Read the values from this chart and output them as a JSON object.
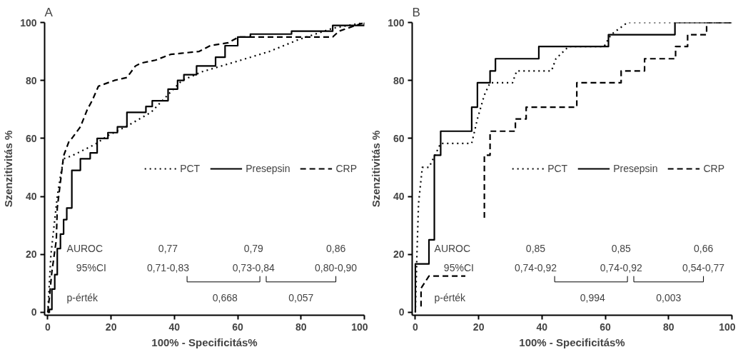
{
  "chart_data": [
    {
      "type": "line",
      "title": "A",
      "xlabel": "100% - Specificitás%",
      "ylabel": "Szenzitivitás %",
      "xlim": [
        -1,
        100
      ],
      "ylim": [
        -1,
        100
      ],
      "xticks": [
        0,
        20,
        40,
        60,
        80,
        100
      ],
      "yticks": [
        0,
        20,
        40,
        60,
        80,
        100
      ],
      "grid": false,
      "legend": "right",
      "series": [
        {
          "name": "PCT",
          "color": "#000000",
          "line_style": "dotted",
          "x": [
            0,
            0.5,
            1,
            2,
            3,
            4,
            5,
            7.6,
            15,
            19,
            24.6,
            32.6,
            38.8,
            42.4,
            48.7,
            61,
            70,
            79,
            90,
            100
          ],
          "values": [
            0,
            10,
            20,
            30,
            40,
            47,
            53,
            54,
            58,
            61,
            64,
            69,
            76,
            80,
            83,
            87,
            90,
            94,
            98,
            100
          ]
        },
        {
          "name": "Presepsin",
          "color": "#000000",
          "line_style": "solid",
          "x": [
            0,
            0.5,
            0.5,
            1.3,
            1.3,
            2.2,
            2.2,
            3,
            3,
            4,
            4,
            5,
            5,
            6,
            6,
            7.6,
            7.6,
            10.3,
            10.3,
            13.4,
            13.4,
            15.6,
            15.6,
            19,
            19,
            22,
            22,
            25,
            25,
            31,
            31,
            33,
            33,
            38,
            38,
            41,
            41,
            43,
            43,
            47,
            47,
            53,
            53,
            56,
            56,
            60,
            60,
            64,
            64,
            77,
            77,
            90,
            90,
            100,
            100
          ],
          "values": [
            0,
            0,
            1,
            1,
            8,
            8,
            13,
            13,
            22,
            22,
            27,
            27,
            32,
            32,
            36,
            36,
            49,
            49,
            53,
            53,
            55,
            55,
            60,
            60,
            62,
            62,
            64,
            64,
            69,
            69,
            71,
            71,
            73,
            73,
            77,
            77,
            80,
            80,
            82,
            82,
            85,
            85,
            88,
            88,
            92,
            92,
            95,
            95,
            96,
            96,
            97,
            97,
            99,
            99,
            100
          ]
        },
        {
          "name": "CRP",
          "color": "#000000",
          "line_style": "dashed",
          "x": [
            0,
            0.5,
            1.3,
            2.7,
            3,
            4,
            5,
            6.7,
            7.6,
            10.3,
            12.5,
            14,
            16,
            21,
            25,
            27.7,
            29.5,
            34,
            38.8,
            47.8,
            51.3,
            57,
            60.3,
            90,
            92,
            100
          ],
          "values": [
            0,
            5,
            14,
            25,
            36,
            45,
            54,
            59,
            60,
            64,
            70,
            73,
            78,
            80,
            81,
            85,
            86,
            87,
            89,
            90,
            92,
            93,
            95,
            95,
            97,
            100
          ]
        }
      ],
      "annotations": [
        "AUROC",
        "0,77",
        "0,79",
        "0,86",
        "95%CI",
        "0,71-0,83",
        "0,73-0,84",
        "0,80-0,90",
        "p-érték",
        "0,668",
        "0,057"
      ]
    },
    {
      "type": "line",
      "title": "B",
      "xlabel": "100% - Specificitás%",
      "ylabel": "Szenzitivitás %",
      "xlim": [
        -1,
        100
      ],
      "ylim": [
        -1,
        100
      ],
      "xticks": [
        0,
        20,
        40,
        60,
        80,
        100
      ],
      "yticks": [
        0,
        20,
        40,
        60,
        80,
        100
      ],
      "grid": false,
      "legend": "right",
      "series": [
        {
          "name": "PCT",
          "color": "#000000",
          "line_style": "dotted",
          "x": [
            0,
            0.5,
            1,
            2.2,
            4.3,
            8,
            17.8,
            19.6,
            21.8,
            23.6,
            30.7,
            32,
            43,
            44.4,
            48.4,
            59.6,
            61.8,
            67,
            100
          ],
          "values": [
            0,
            20,
            37.5,
            50,
            50,
            58.3,
            58.3,
            66.7,
            75,
            79.2,
            79.2,
            83.3,
            83.3,
            87.5,
            91.7,
            91.7,
            95.8,
            100,
            100
          ]
        },
        {
          "name": "Presepsin",
          "color": "#000000",
          "line_style": "solid",
          "x": [
            0,
            0,
            4.3,
            4.3,
            6,
            6,
            8,
            8,
            17.8,
            17.8,
            19.6,
            19.6,
            23.6,
            23.6,
            25.3,
            25.3,
            39,
            39,
            61,
            61,
            82,
            82,
            100
          ],
          "values": [
            0,
            16.7,
            16.7,
            25,
            25,
            54.2,
            54.2,
            62.5,
            62.5,
            70.8,
            70.8,
            79.2,
            79.2,
            83.3,
            83.3,
            87.5,
            87.5,
            91.7,
            91.7,
            95.8,
            95.8,
            100,
            100
          ]
        },
        {
          "name": "CRP",
          "color": "#000000",
          "line_style": "dashed",
          "x": [
            1.8,
            1.8,
            4.3,
            15.8,
            18,
            21.8,
            21.8,
            23.6,
            23.6,
            31.6,
            31.6,
            35,
            35,
            51,
            51,
            65,
            65,
            72.4,
            72.4,
            82.2,
            82.2,
            86,
            86,
            92,
            92,
            100
          ],
          "values": [
            2,
            8.3,
            12.5,
            12.5,
            null,
            32.6,
            54.2,
            54.2,
            62.5,
            62.5,
            66.7,
            66.7,
            70.8,
            70.8,
            79.2,
            79.2,
            83.3,
            83.3,
            87.5,
            87.5,
            91.7,
            91.7,
            95.8,
            95.8,
            100,
            100
          ]
        }
      ],
      "annotations": [
        "AUROC",
        "0,85",
        "0,85",
        "0,66",
        "95%CI",
        "0,74-0,92",
        "0,74-0,92",
        "0,54-0,77",
        "p-érték",
        "0,994",
        "0,003"
      ]
    }
  ]
}
